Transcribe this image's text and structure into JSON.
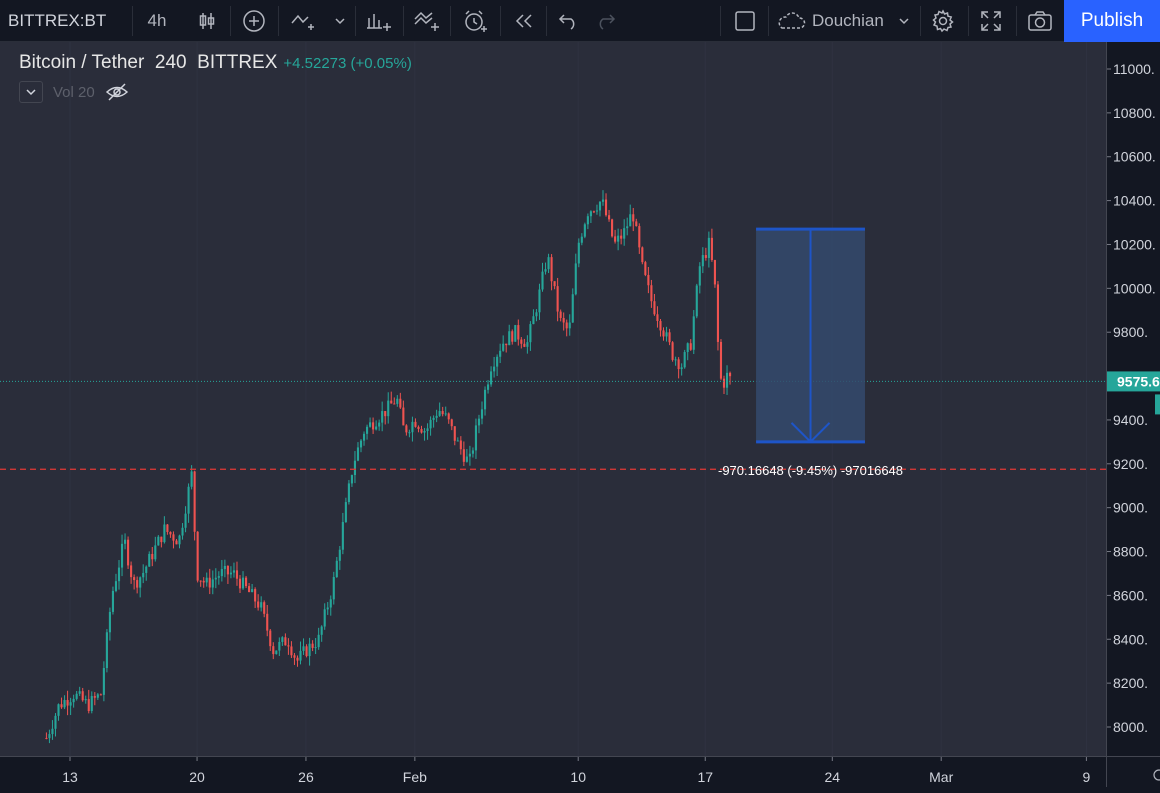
{
  "toolbar": {
    "symbol": "BITTREX:BT",
    "interval": "4h",
    "username": "Douchian",
    "publish_label": "Publish"
  },
  "legend": {
    "title": "Bitcoin / Tether",
    "interval": "240",
    "exchange": "BITTREX",
    "change": "+4.52273 (+0.05%)",
    "indicator": "Vol 20"
  },
  "colors": {
    "background": "#2a2d3a",
    "up": "#26a69a",
    "down": "#ef5350",
    "accent": "#2962ff",
    "measure_fill": "#344a6d",
    "measure_line": "#1e55c8",
    "current_price_line": "#26a69a",
    "support_line": "#e53935"
  },
  "chart_data": {
    "type": "candlestick",
    "ylim": [
      7870,
      11180
    ],
    "price_ticks": [
      8000,
      8200,
      8400,
      8600,
      8800,
      9000,
      9200,
      9400,
      9600,
      9800,
      10000,
      10200,
      10400,
      10600,
      10800,
      11000
    ],
    "price_tick_labels": [
      "8000.",
      "8200.",
      "8400.",
      "8600.",
      "8800.",
      "9000.",
      "9200.",
      "9400.",
      "",
      "9800.",
      "10000.",
      "10200.",
      "10400.",
      "10600.",
      "10800.",
      "11000."
    ],
    "time_labels": [
      "13",
      "20",
      "26",
      "Feb",
      "10",
      "17",
      "24",
      "Mar",
      "9"
    ],
    "time_label_offsets_days": [
      0,
      7,
      13,
      19,
      28,
      35,
      42,
      48,
      56
    ],
    "first_bar_days": -1.3,
    "bar_hours": 4,
    "current_price": 9575.6,
    "current_price_label": "9575.6",
    "support_level": 9175,
    "anchors": [
      [
        -1.3,
        7950
      ],
      [
        -0.6,
        8100
      ],
      [
        0.2,
        8150
      ],
      [
        1.0,
        8100
      ],
      [
        1.7,
        8150
      ],
      [
        2.3,
        8600
      ],
      [
        3.0,
        8850
      ],
      [
        3.5,
        8650
      ],
      [
        4.0,
        8700
      ],
      [
        5.2,
        8900
      ],
      [
        6.0,
        8850
      ],
      [
        6.7,
        9150
      ],
      [
        7.0,
        8700
      ],
      [
        7.5,
        8650
      ],
      [
        8.3,
        8700
      ],
      [
        9.0,
        8700
      ],
      [
        9.5,
        8650
      ],
      [
        10.5,
        8550
      ],
      [
        11.2,
        8350
      ],
      [
        12.0,
        8400
      ],
      [
        12.5,
        8300
      ],
      [
        13.0,
        8350
      ],
      [
        13.7,
        8400
      ],
      [
        14.5,
        8650
      ],
      [
        15.1,
        8950
      ],
      [
        15.6,
        9200
      ],
      [
        16.2,
        9350
      ],
      [
        16.8,
        9400
      ],
      [
        17.5,
        9450
      ],
      [
        18.0,
        9500
      ],
      [
        18.4,
        9350
      ],
      [
        19.0,
        9400
      ],
      [
        19.6,
        9350
      ],
      [
        20.3,
        9450
      ],
      [
        20.8,
        9400
      ],
      [
        21.3,
        9300
      ],
      [
        22.0,
        9200
      ],
      [
        22.5,
        9400
      ],
      [
        23.2,
        9650
      ],
      [
        23.8,
        9750
      ],
      [
        24.5,
        9800
      ],
      [
        25.2,
        9750
      ],
      [
        25.8,
        9950
      ],
      [
        26.3,
        10150
      ],
      [
        27.0,
        9850
      ],
      [
        27.5,
        9800
      ],
      [
        28.0,
        10200
      ],
      [
        28.5,
        10350
      ],
      [
        29.3,
        10400
      ],
      [
        30.0,
        10200
      ],
      [
        30.5,
        10250
      ],
      [
        31.0,
        10350
      ],
      [
        31.5,
        10100
      ],
      [
        32.0,
        9950
      ],
      [
        32.5,
        9850
      ],
      [
        33.2,
        9700
      ],
      [
        33.7,
        9650
      ],
      [
        34.2,
        9750
      ],
      [
        34.7,
        10100
      ],
      [
        35.2,
        10200
      ],
      [
        35.5,
        10050
      ],
      [
        35.7,
        9750
      ],
      [
        35.9,
        9550
      ],
      [
        36.2,
        9600
      ],
      [
        36.5,
        9575
      ]
    ]
  },
  "measure": {
    "top_price": 10270,
    "bottom_price": 9300,
    "start_days": 37.8,
    "end_days": 43.8,
    "label": "-970.16648 (-9.45%) -97016648"
  }
}
